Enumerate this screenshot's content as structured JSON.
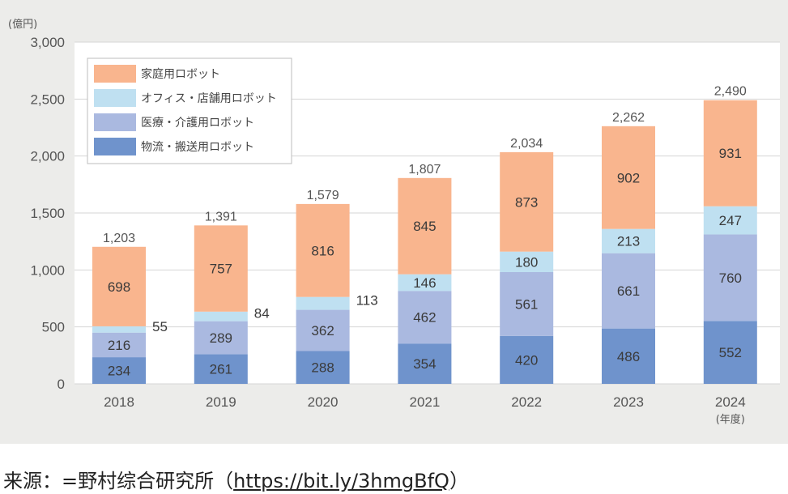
{
  "chart_data": {
    "type": "bar",
    "stacked": true,
    "unit_label": "(億円)",
    "categories": [
      "2018",
      "2019",
      "2020",
      "2021",
      "2022",
      "2023",
      "2024"
    ],
    "last_category_note": "(年度)",
    "series": [
      {
        "name": "物流・搬送用ロボット",
        "color": "#6f93cc",
        "values": [
          234,
          261,
          288,
          354,
          420,
          486,
          552
        ]
      },
      {
        "name": "医療・介護用ロボット",
        "color": "#aab9e0",
        "values": [
          216,
          289,
          362,
          462,
          561,
          661,
          760
        ]
      },
      {
        "name": "オフィス・店舗用ロボット",
        "color": "#bfe0f1",
        "values": [
          55,
          84,
          113,
          146,
          180,
          213,
          247
        ]
      },
      {
        "name": "家庭用ロボット",
        "color": "#f9b58e",
        "values": [
          698,
          757,
          816,
          845,
          873,
          902,
          931
        ]
      }
    ],
    "totals": [
      1203,
      1391,
      1579,
      1807,
      2034,
      2262,
      2490
    ],
    "total_labels": [
      "1,203",
      "1,391",
      "1,579",
      "1,807",
      "2,034",
      "2,262",
      "2,490"
    ],
    "yticks": [
      0,
      500,
      1000,
      1500,
      2000,
      2500,
      3000
    ],
    "ytick_labels": [
      "0",
      "500",
      "1,000",
      "1,500",
      "2,000",
      "2,500",
      "3,000"
    ],
    "ylim": [
      0,
      3000
    ],
    "grid": true,
    "legend_position": "top-left",
    "legend_order": [
      "家庭用ロボット",
      "オフィス・店舗用ロボット",
      "医療・介護用ロボット",
      "物流・搬送用ロボット"
    ],
    "outside_labels": [
      "55",
      "84"
    ]
  },
  "caption": {
    "prefix": "来源：=野村综合研究所（",
    "link": "https://bit.ly/3hmgBfQ",
    "suffix": "）"
  }
}
